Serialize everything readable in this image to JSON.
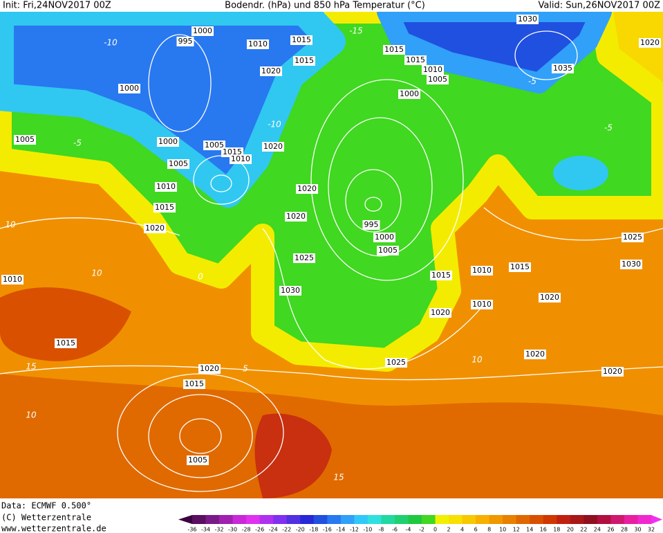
{
  "header": {
    "init": "Init: Fri,24NOV2017 00Z",
    "title": "Bodendr. (hPa) und 850 hPa Temperatur (°C)",
    "valid": "Valid: Sun,26NOV2017 00Z"
  },
  "map": {
    "isobar_labels": [
      "1000",
      "995",
      "1010",
      "1015",
      "1015",
      "1020",
      "1000",
      "1005",
      "1000",
      "1005",
      "1015",
      "1010",
      "1020",
      "1005",
      "1010",
      "1015",
      "1020",
      "1020",
      "1020",
      "1025",
      "1030",
      "995",
      "1000",
      "1005",
      "1015",
      "1015",
      "1010",
      "1005",
      "1000",
      "1030",
      "1035",
      "1020",
      "1025",
      "1030",
      "1015",
      "1010",
      "1015",
      "1010",
      "1020",
      "1020",
      "1020",
      "1020",
      "1025",
      "1020",
      "1015",
      "1015",
      "1010",
      "1005"
    ],
    "temperature_labels": [
      "-15",
      "-10",
      "-5",
      "-10",
      "-5",
      "-5",
      "10",
      "10",
      "15",
      "10",
      "15",
      "10",
      "5",
      "0"
    ]
  },
  "footer": {
    "data": "Data: ECMWF  0.500°",
    "copyright": "(C) Wetterzentrale",
    "url": "www.wetterzentrale.de"
  },
  "color_scale": {
    "labels": [
      "-36",
      "-34",
      "-32",
      "-30",
      "-28",
      "-26",
      "-24",
      "-22",
      "-20",
      "-18",
      "-16",
      "-14",
      "-12",
      "-10",
      "-8",
      "-6",
      "-4",
      "-2",
      "0",
      "2",
      "4",
      "6",
      "8",
      "10",
      "12",
      "14",
      "16",
      "18",
      "20",
      "22",
      "24",
      "26",
      "28",
      "30",
      "32"
    ],
    "colors": [
      "#3a0040",
      "#5a1060",
      "#7a1a8a",
      "#a020b0",
      "#c828d8",
      "#e030f0",
      "#b030f0",
      "#8030f0",
      "#5030e0",
      "#2828d8",
      "#2050e0",
      "#2878f0",
      "#30a0f8",
      "#30c8f8",
      "#30e0e0",
      "#20d8a0",
      "#20d070",
      "#20c840",
      "#40d820",
      "#f0f000",
      "#f8e000",
      "#f8c800",
      "#f8b000",
      "#f09800",
      "#e88000",
      "#e06800",
      "#d85000",
      "#d03800",
      "#c02010",
      "#a81818",
      "#901020",
      "#b01040",
      "#d01870",
      "#e820a0",
      "#f028d0",
      "#f030f0"
    ]
  }
}
